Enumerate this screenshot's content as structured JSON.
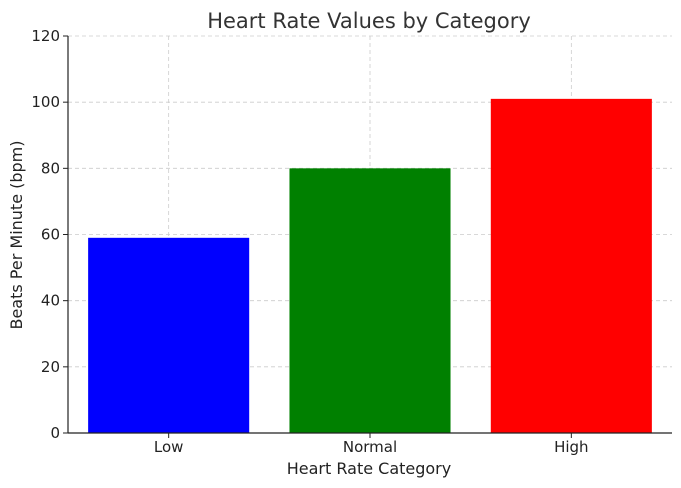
{
  "chart_data": {
    "type": "bar",
    "title": "Heart Rate Values by Category",
    "xlabel": "Heart Rate Category",
    "ylabel": "Beats Per Minute (bpm)",
    "categories": [
      "Low",
      "Normal",
      "High"
    ],
    "values": [
      59,
      80,
      101
    ],
    "colors": [
      "#0000ff",
      "#008000",
      "#ff0000"
    ],
    "ylim": [
      0,
      120
    ],
    "yticks": [
      0,
      20,
      40,
      60,
      80,
      100,
      120
    ],
    "grid": true
  }
}
